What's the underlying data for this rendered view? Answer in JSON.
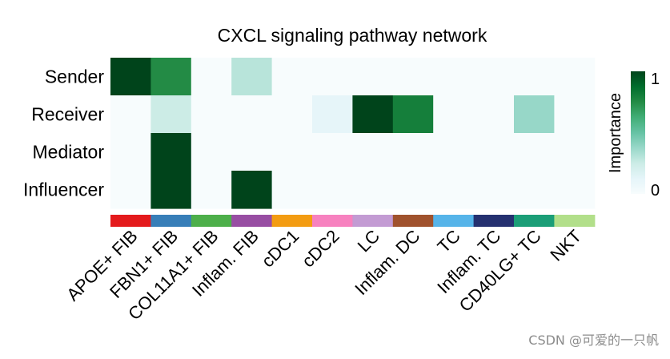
{
  "chart_data": {
    "type": "heatmap",
    "title": "CXCL signaling pathway network",
    "rows": [
      "Sender",
      "Receiver",
      "Mediator",
      "Influencer"
    ],
    "columns": [
      "APOE+ FIB",
      "FBN1+ FIB",
      "COL11A1+ FIB",
      "Inflam. FIB",
      "cDC1",
      "cDC2",
      "LC",
      "Inflam. DC",
      "TC",
      "Inflam. TC",
      "CD40LG+ TC",
      "NKT"
    ],
    "values": [
      [
        1.0,
        0.75,
        0.0,
        0.3,
        0.0,
        0.0,
        0.0,
        0.0,
        0.0,
        0.0,
        0.0,
        0.0
      ],
      [
        0.0,
        0.25,
        0.0,
        0.0,
        0.0,
        0.12,
        1.0,
        0.8,
        0.0,
        0.0,
        0.38,
        0.0
      ],
      [
        0.0,
        1.0,
        0.0,
        0.0,
        0.0,
        0.0,
        0.0,
        0.0,
        0.0,
        0.0,
        0.0,
        0.0
      ],
      [
        0.0,
        1.0,
        0.0,
        1.0,
        0.0,
        0.0,
        0.0,
        0.0,
        0.0,
        0.0,
        0.0,
        0.0
      ]
    ],
    "column_annotation_colors": [
      "#e41a1c",
      "#377eb8",
      "#4daf4a",
      "#984ea3",
      "#f39c12",
      "#f781bf",
      "#c39bd3",
      "#a0522d",
      "#56b4e9",
      "#253170",
      "#1b9e77",
      "#b2df8a"
    ],
    "colorbar": {
      "label": "Importance",
      "min_label": "0",
      "max_label": "1",
      "range": [
        0,
        1
      ]
    },
    "color_scale": [
      "#f7fcfd",
      "#e5f5f9",
      "#ccece6",
      "#99d8c9",
      "#66c2a4",
      "#41ae76",
      "#238b45",
      "#006d2c",
      "#00441b"
    ]
  },
  "watermark": "CSDN @可爱的一只帆"
}
